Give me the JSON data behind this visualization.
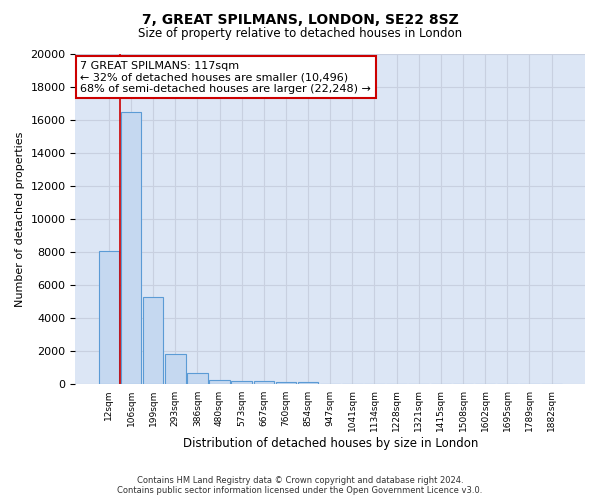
{
  "title": "7, GREAT SPILMANS, LONDON, SE22 8SZ",
  "subtitle": "Size of property relative to detached houses in London",
  "xlabel": "Distribution of detached houses by size in London",
  "ylabel": "Number of detached properties",
  "annotation_title": "7 GREAT SPILMANS: 117sqm",
  "annotation_line2": "← 32% of detached houses are smaller (10,496)",
  "annotation_line3": "68% of semi-detached houses are larger (22,248) →",
  "footer_line1": "Contains HM Land Registry data © Crown copyright and database right 2024.",
  "footer_line2": "Contains public sector information licensed under the Open Government Licence v3.0.",
  "bin_labels": [
    "12sqm",
    "106sqm",
    "199sqm",
    "293sqm",
    "386sqm",
    "480sqm",
    "573sqm",
    "667sqm",
    "760sqm",
    "854sqm",
    "947sqm",
    "1041sqm",
    "1134sqm",
    "1228sqm",
    "1321sqm",
    "1415sqm",
    "1508sqm",
    "1602sqm",
    "1695sqm",
    "1789sqm",
    "1882sqm"
  ],
  "bin_values": [
    8100,
    16500,
    5300,
    1850,
    700,
    300,
    230,
    200,
    170,
    150,
    0,
    0,
    0,
    0,
    0,
    0,
    0,
    0,
    0,
    0,
    0
  ],
  "bar_color": "#c5d8f0",
  "bar_edge_color": "#5b9bd5",
  "grid_color": "#c8d0e0",
  "background_color": "#dce6f5",
  "annotation_box_color": "#ffffff",
  "annotation_box_edge": "#cc0000",
  "vline_color": "#cc0000",
  "vline_x": 0.5,
  "ylim": [
    0,
    20000
  ],
  "yticks": [
    0,
    2000,
    4000,
    6000,
    8000,
    10000,
    12000,
    14000,
    16000,
    18000,
    20000
  ]
}
